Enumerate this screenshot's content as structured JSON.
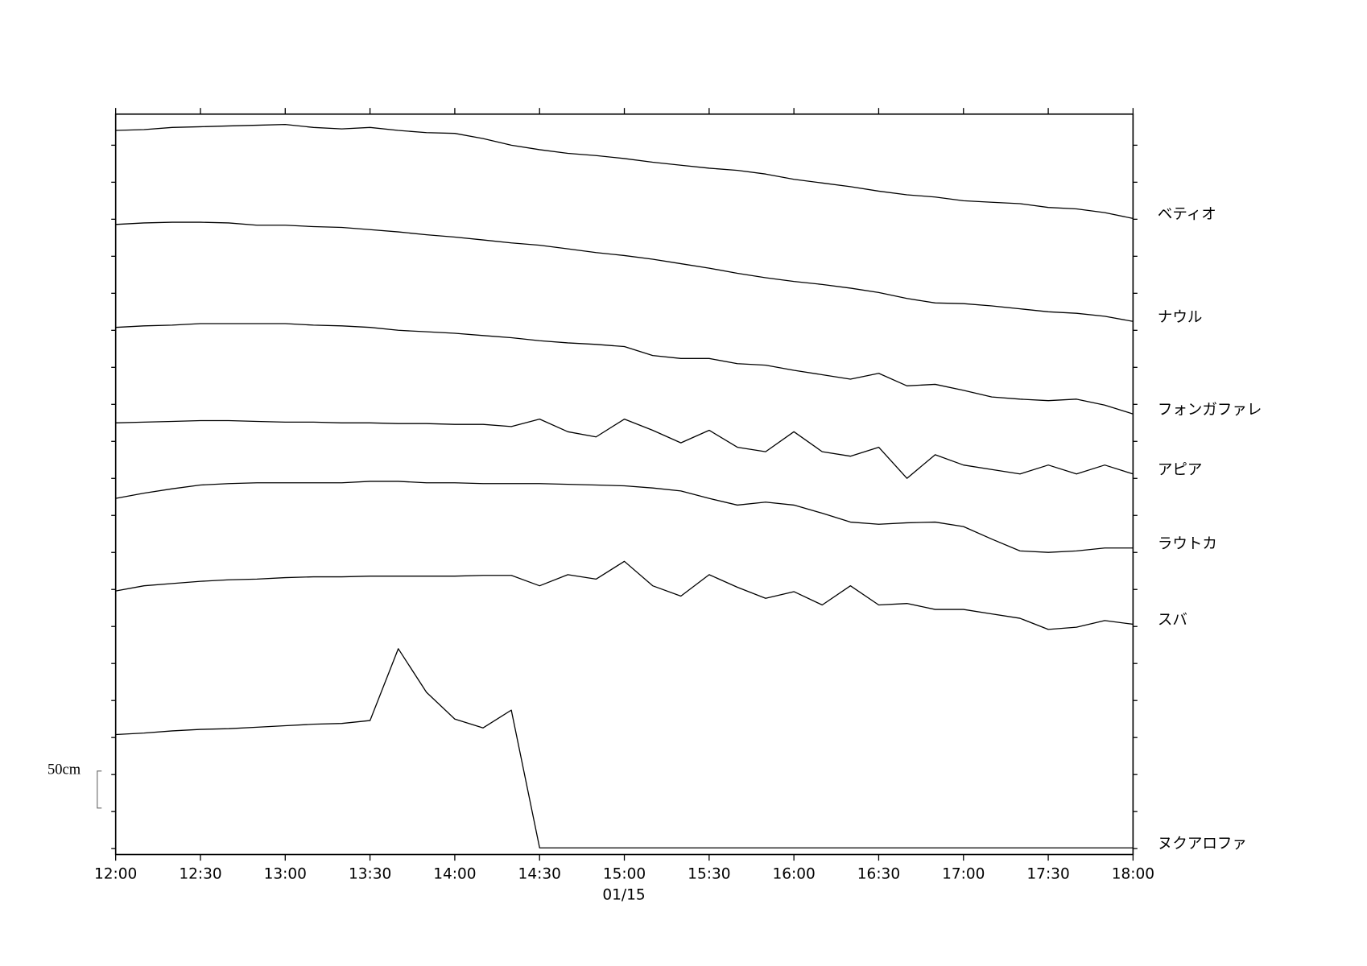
{
  "chart_data": {
    "type": "line",
    "x_label": "01/15",
    "scale_bar": {
      "value": 50,
      "label": "50cm"
    },
    "x": [
      12,
      12.1667,
      12.3333,
      12.5,
      12.6667,
      12.8333,
      13,
      13.1667,
      13.3333,
      13.5,
      13.6667,
      13.8333,
      14,
      14.1667,
      14.3333,
      14.5,
      14.6667,
      14.8333,
      15,
      15.1667,
      15.3333,
      15.5,
      15.6667,
      15.8333,
      16,
      16.1667,
      16.3333,
      16.5,
      16.6667,
      16.8333,
      17,
      17.1667,
      17.3333,
      17.5,
      17.6667,
      17.8333,
      18
    ],
    "xlim": [
      12,
      18
    ],
    "xticks": [
      {
        "value": 12,
        "label": "12:00"
      },
      {
        "value": 12.5,
        "label": "12:30"
      },
      {
        "value": 13,
        "label": "13:00"
      },
      {
        "value": 13.5,
        "label": "13:30"
      },
      {
        "value": 14,
        "label": "14:00"
      },
      {
        "value": 14.5,
        "label": "14:30"
      },
      {
        "value": 15,
        "label": "15:00"
      },
      {
        "value": 15.5,
        "label": "15:30"
      },
      {
        "value": 16,
        "label": "16:00"
      },
      {
        "value": 16.5,
        "label": "16:30"
      },
      {
        "value": 17,
        "label": "17:00"
      },
      {
        "value": 17.5,
        "label": "17:30"
      },
      {
        "value": 18,
        "label": "18:00"
      }
    ],
    "ylim": [
      -8,
      992
    ],
    "yticks": [
      0,
      50,
      100,
      150,
      200,
      250,
      300,
      350,
      400,
      450,
      500,
      550,
      600,
      650,
      700,
      750,
      800,
      850,
      900,
      950
    ],
    "series": [
      {
        "name": "ベティオ",
        "color": "#000000",
        "values": [
          970,
          971,
          974,
          975,
          976,
          977,
          978,
          974,
          972,
          974,
          970,
          967,
          966,
          959,
          950,
          944,
          939,
          936,
          932,
          927,
          923,
          919,
          916,
          911,
          904,
          899,
          894,
          888,
          883,
          880,
          875,
          873,
          871,
          866,
          864,
          859,
          851
        ]
      },
      {
        "name": "ナウル",
        "color": "#000000",
        "values": [
          843,
          845,
          846,
          846,
          845,
          842,
          842,
          840,
          839,
          836,
          833,
          829,
          826,
          822,
          818,
          815,
          810,
          805,
          801,
          796,
          790,
          784,
          777,
          771,
          766,
          762,
          757,
          751,
          743,
          737,
          736,
          733,
          729,
          725,
          723,
          719,
          712
        ]
      },
      {
        "name": "フォンガファレ",
        "color": "#000000",
        "values": [
          704,
          706,
          707,
          709,
          709,
          709,
          709,
          707,
          706,
          704,
          700,
          698,
          696,
          693,
          690,
          686,
          683,
          681,
          678,
          666,
          662,
          662,
          655,
          653,
          646,
          640,
          634,
          642,
          625,
          627,
          619,
          610,
          607,
          605,
          607,
          599,
          587
        ]
      },
      {
        "name": "アピア",
        "color": "#000000",
        "values": [
          575,
          576,
          577,
          578,
          578,
          577,
          576,
          576,
          575,
          575,
          574,
          574,
          573,
          573,
          570,
          580,
          563,
          556,
          580,
          565,
          548,
          565,
          542,
          536,
          563,
          536,
          530,
          542,
          500,
          532,
          518,
          512,
          506,
          518,
          506,
          518,
          506
        ]
      },
      {
        "name": "ラウトカ",
        "color": "#000000",
        "values": [
          473,
          480,
          486,
          491,
          493,
          494,
          494,
          494,
          494,
          496,
          496,
          494,
          494,
          493,
          493,
          493,
          492,
          491,
          490,
          487,
          483,
          473,
          464,
          468,
          464,
          453,
          441,
          438,
          440,
          441,
          435,
          418,
          402,
          400,
          402,
          406,
          406
        ]
      },
      {
        "name": "スバ",
        "color": "#000000",
        "values": [
          348,
          355,
          358,
          361,
          363,
          364,
          366,
          367,
          367,
          368,
          368,
          368,
          368,
          369,
          369,
          355,
          370,
          364,
          388,
          355,
          341,
          370,
          353,
          338,
          347,
          329,
          355,
          329,
          331,
          323,
          323,
          317,
          311,
          296,
          299,
          308,
          303
        ]
      },
      {
        "name": "ヌクアロファ",
        "color": "#000000",
        "values": [
          154,
          156,
          159,
          161,
          162,
          164,
          166,
          168,
          169,
          173,
          270,
          211,
          175,
          163,
          187,
          1,
          1,
          1,
          1,
          1,
          1,
          1,
          1,
          1,
          1,
          1,
          1,
          1,
          1,
          1,
          1,
          1,
          1,
          1,
          1,
          1,
          1
        ]
      }
    ]
  }
}
